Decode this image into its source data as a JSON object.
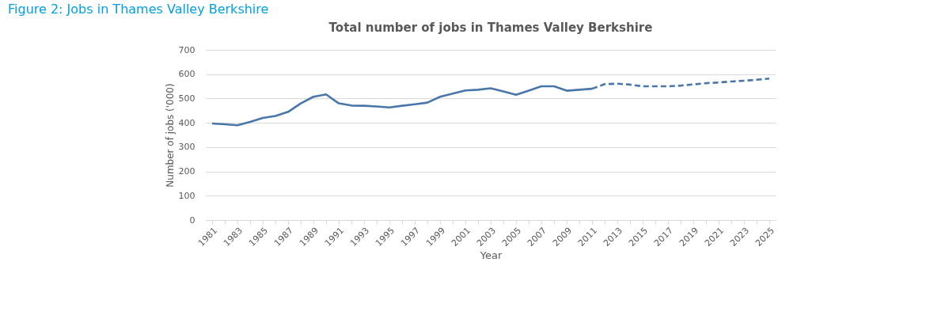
{
  "chart_data": {
    "type": "line",
    "title": "Total number of jobs in Thames Valley Berkshire",
    "xlabel": "Year",
    "ylabel": "Number of jobs ('000)",
    "annotations": [
      "Figure 2: Jobs in Thames Valley Berkshire"
    ],
    "categories": [
      "1981",
      null,
      "1983",
      null,
      "1985",
      null,
      "1987",
      null,
      "1989",
      null,
      "1991",
      null,
      "1993",
      null,
      "1995",
      null,
      "1997",
      null,
      "1999",
      null,
      "2001",
      null,
      "2003",
      null,
      "2005",
      null,
      "2007",
      null,
      "2009",
      null,
      "2011",
      null,
      "2013",
      null,
      "2015",
      null,
      "2017",
      null,
      "2019",
      null,
      "2021",
      null,
      "2023",
      null,
      "2025"
    ],
    "series": [
      {
        "color": "#4a76a9",
        "line_style": "solid",
        "values": [
          397,
          394,
          390,
          404,
          420,
          428,
          445,
          480,
          507,
          517,
          480,
          471,
          470,
          467,
          463,
          470,
          476,
          483,
          507,
          520,
          533,
          536,
          542,
          529,
          515,
          532,
          550,
          550,
          532,
          536,
          540,
          null,
          null,
          null,
          null,
          null,
          null,
          null,
          null,
          null,
          null,
          null,
          null,
          null,
          null
        ]
      },
      {
        "color": "#4a76a9",
        "line_style": "dashed",
        "values": [
          null,
          null,
          null,
          null,
          null,
          null,
          null,
          null,
          null,
          null,
          null,
          null,
          null,
          null,
          null,
          null,
          null,
          null,
          null,
          null,
          null,
          null,
          null,
          null,
          null,
          null,
          null,
          null,
          null,
          null,
          540,
          559,
          561,
          557,
          550,
          550,
          550,
          553,
          558,
          563,
          566,
          570,
          573,
          577,
          582
        ]
      }
    ],
    "ylim": [
      0,
      700
    ],
    "yticks": [
      0,
      100,
      200,
      300,
      400,
      500,
      600,
      700
    ],
    "grid": "y",
    "legend": false,
    "marker": "none"
  }
}
